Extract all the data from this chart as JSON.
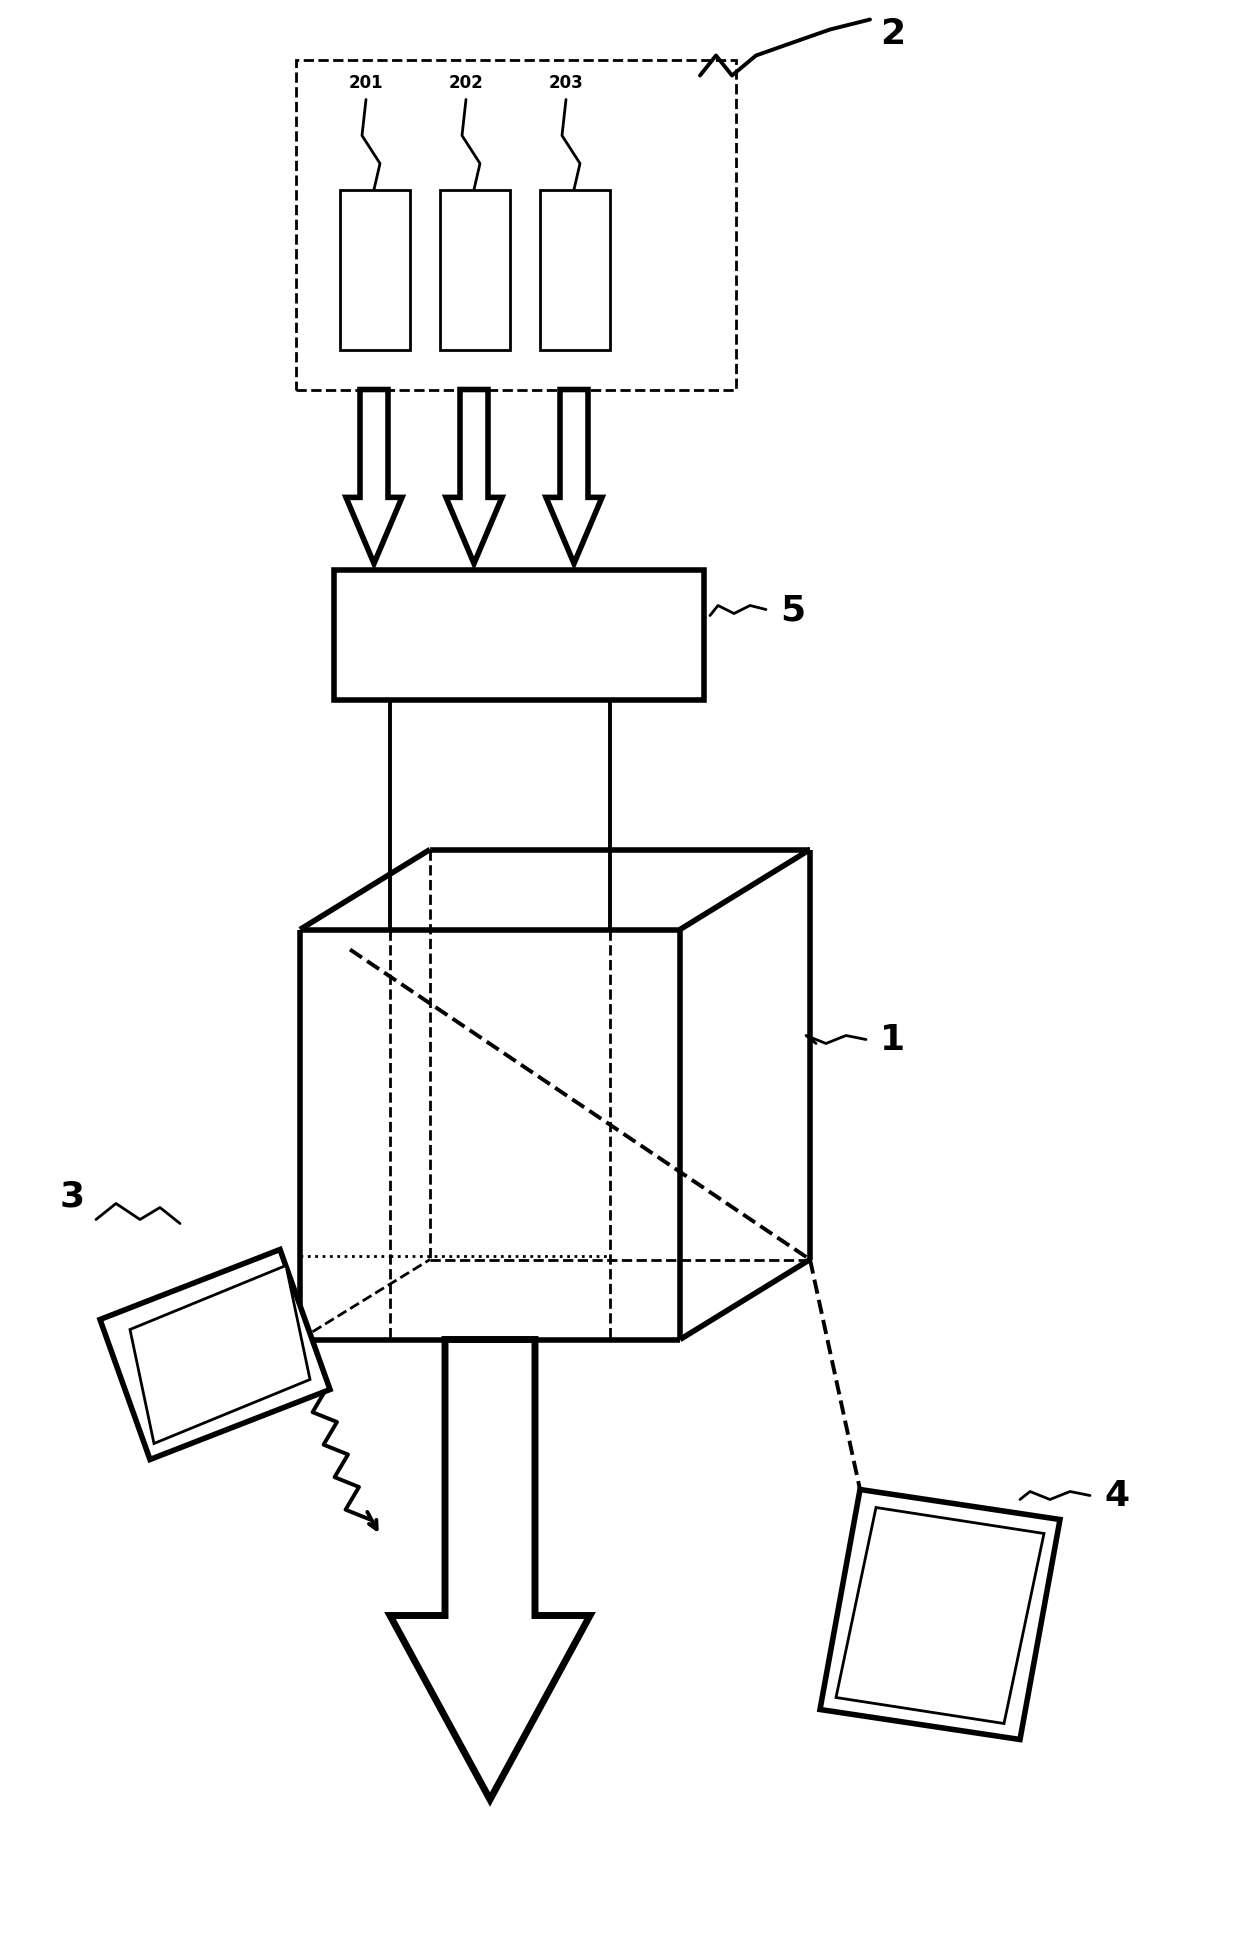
{
  "bg_color": "#ffffff",
  "line_color": "#000000",
  "lw_thick": 4.0,
  "lw_medium": 2.8,
  "lw_thin": 2.0,
  "fig_width": 12.4,
  "fig_height": 19.49,
  "label_2": "2",
  "label_1": "1",
  "label_3": "3",
  "label_4": "4",
  "label_5": "5",
  "label_201": "201",
  "label_202": "202",
  "label_203": "203",
  "font_size_labels": 26
}
